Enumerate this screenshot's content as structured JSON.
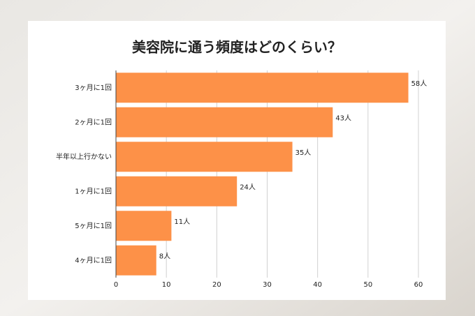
{
  "chart_data": {
    "type": "bar",
    "orientation": "horizontal",
    "title": "美容院に通う頻度はどのくらい？",
    "categories": [
      "3ヶ月に1回",
      "2ヶ月に1回",
      "半年以上行かない",
      "1ヶ月に1回",
      "5ヶ月に1回",
      "4ヶ月に1回"
    ],
    "values": [
      58,
      43,
      35,
      24,
      11,
      8
    ],
    "value_labels": [
      "58人",
      "43人",
      "35人",
      "24人",
      "11人",
      "8人"
    ],
    "color": "#fd9148",
    "xlim": [
      0,
      60
    ],
    "xticks": [
      0,
      10,
      20,
      30,
      40,
      50,
      60
    ],
    "grid": true
  }
}
